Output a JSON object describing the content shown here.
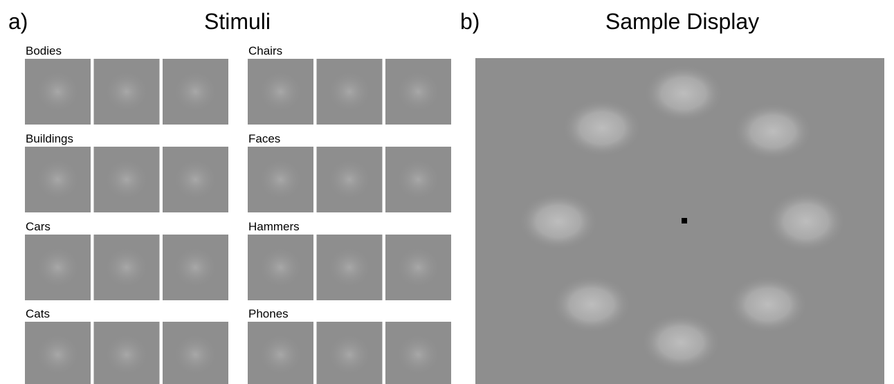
{
  "panel_a": {
    "label": "a)",
    "title": "Stimuli",
    "categories": [
      "Bodies",
      "Chairs",
      "Buildings",
      "Faces",
      "Cars",
      "Hammers",
      "Cats",
      "Phones"
    ]
  },
  "panel_b": {
    "label": "b)",
    "title": "Sample Display"
  }
}
